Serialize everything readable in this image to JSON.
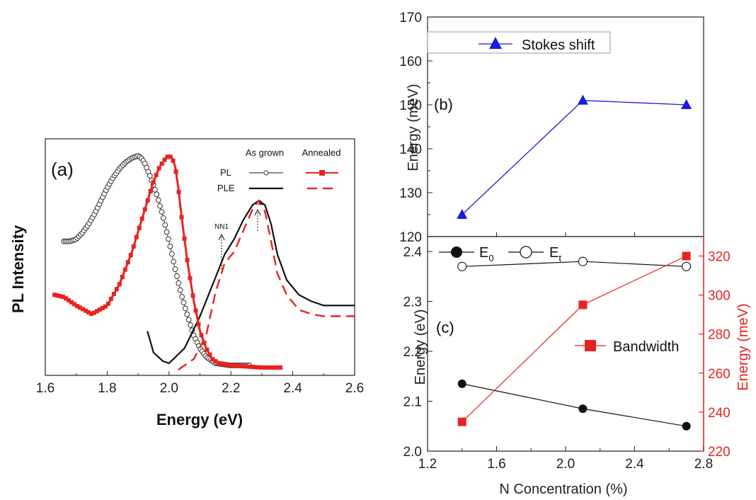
{
  "chart_data": [
    {
      "panel": "(a)",
      "type": "line",
      "xlabel": "Energy (eV)",
      "ylabel": "PL Intensity",
      "xlim": [
        1.6,
        2.6
      ],
      "xticks": [
        "1.6",
        "1.8",
        "2.0",
        "2.2",
        "2.4",
        "2.6"
      ],
      "legend": {
        "col_headers": [
          "As grown",
          "Annealed"
        ],
        "row_labels": [
          "PL",
          "PLE"
        ]
      },
      "annotations": [
        "NN1",
        "A"
      ],
      "series": [
        {
          "name": "PL",
          "group": "As grown",
          "color": "#444444",
          "x": [
            1.66,
            1.68,
            1.7,
            1.72,
            1.74,
            1.76,
            1.78,
            1.8,
            1.82,
            1.84,
            1.86,
            1.88,
            1.9,
            1.91,
            1.92,
            1.94,
            1.96,
            1.98,
            2.0,
            2.02,
            2.04,
            2.06,
            2.08,
            2.1,
            2.12,
            2.15,
            2.2,
            2.26
          ],
          "y": [
            0.6,
            0.6,
            0.61,
            0.64,
            0.68,
            0.73,
            0.79,
            0.85,
            0.9,
            0.94,
            0.97,
            0.99,
            1.0,
            0.99,
            0.97,
            0.9,
            0.82,
            0.72,
            0.6,
            0.47,
            0.35,
            0.25,
            0.16,
            0.1,
            0.06,
            0.03,
            0.02,
            0.02
          ]
        },
        {
          "name": "PLE",
          "group": "As grown",
          "color": "#111111",
          "x": [
            1.93,
            1.95,
            1.98,
            2.0,
            2.05,
            2.1,
            2.15,
            2.18,
            2.21,
            2.24,
            2.27,
            2.29,
            2.31,
            2.33,
            2.35,
            2.38,
            2.42,
            2.46,
            2.5,
            2.55,
            2.6
          ],
          "y": [
            0.18,
            0.08,
            0.04,
            0.03,
            0.1,
            0.25,
            0.43,
            0.54,
            0.61,
            0.7,
            0.77,
            0.79,
            0.77,
            0.68,
            0.54,
            0.42,
            0.35,
            0.32,
            0.3,
            0.3,
            0.3
          ]
        },
        {
          "name": "PL",
          "group": "Annealed",
          "color": "#e8231f",
          "x": [
            1.63,
            1.66,
            1.7,
            1.75,
            1.8,
            1.84,
            1.88,
            1.92,
            1.95,
            1.97,
            1.99,
            2.0,
            2.01,
            2.02,
            2.03,
            2.04,
            2.06,
            2.08,
            2.1,
            2.12,
            2.14,
            2.16,
            2.2,
            2.3,
            2.36
          ],
          "y": [
            0.35,
            0.34,
            0.3,
            0.26,
            0.3,
            0.4,
            0.55,
            0.74,
            0.88,
            0.95,
            0.99,
            1.0,
            0.99,
            0.95,
            0.85,
            0.72,
            0.5,
            0.32,
            0.18,
            0.1,
            0.05,
            0.03,
            0.02,
            0.01,
            0.01
          ]
        },
        {
          "name": "PLE",
          "group": "Annealed",
          "color": "#e8231f",
          "x": [
            2.03,
            2.08,
            2.12,
            2.15,
            2.18,
            2.21,
            2.24,
            2.27,
            2.29,
            2.31,
            2.33,
            2.35,
            2.38,
            2.42,
            2.46,
            2.5,
            2.55,
            2.6
          ],
          "y": [
            0.0,
            0.05,
            0.16,
            0.36,
            0.5,
            0.55,
            0.65,
            0.75,
            0.79,
            0.74,
            0.6,
            0.45,
            0.35,
            0.28,
            0.26,
            0.25,
            0.25,
            0.25
          ]
        }
      ]
    },
    {
      "panel": "(b)",
      "type": "line",
      "ylabel": "Energy (meV)",
      "ylim": [
        120,
        170
      ],
      "yticks": [
        "120",
        "130",
        "140",
        "150",
        "160",
        "170"
      ],
      "xlim": [
        1.2,
        2.8
      ],
      "series": [
        {
          "name": "Stokes shift",
          "color": "#1a1adf",
          "marker": "triangle",
          "x": [
            1.4,
            2.1,
            2.7
          ],
          "y": [
            125,
            151,
            150
          ]
        }
      ]
    },
    {
      "panel": "(c)",
      "type": "line",
      "xlabel": "N Concentration (%)",
      "ylabel": "Energy (eV)",
      "y2label": "Energy (meV)",
      "xlim": [
        1.2,
        2.8
      ],
      "ylim": [
        2.0,
        2.43
      ],
      "y2lim": [
        220,
        330
      ],
      "xticks": [
        "1.2",
        "1.6",
        "2.0",
        "2.4",
        "2.8"
      ],
      "yticks": [
        "2.0",
        "2.1",
        "2.2",
        "2.3",
        "2.4"
      ],
      "y2ticks": [
        "220",
        "240",
        "260",
        "280",
        "300",
        "320"
      ],
      "legend": {
        "e0_base": "E",
        "e0_sub": "0",
        "et_base": "E",
        "et_sub": "t",
        "bandwidth": "Bandwidth"
      },
      "series": [
        {
          "name": "E0",
          "color": "#111111",
          "marker": "filled-circle",
          "axis": "left",
          "x": [
            1.4,
            2.1,
            2.7
          ],
          "y": [
            2.135,
            2.085,
            2.05
          ]
        },
        {
          "name": "Et",
          "color": "#111111",
          "marker": "open-circle",
          "axis": "left",
          "x": [
            1.4,
            2.1,
            2.7
          ],
          "y": [
            2.37,
            2.38,
            2.37
          ]
        },
        {
          "name": "Bandwidth",
          "color": "#e8231f",
          "marker": "square",
          "axis": "right",
          "x": [
            1.4,
            2.1,
            2.7
          ],
          "y": [
            235,
            295,
            320
          ]
        }
      ]
    }
  ]
}
